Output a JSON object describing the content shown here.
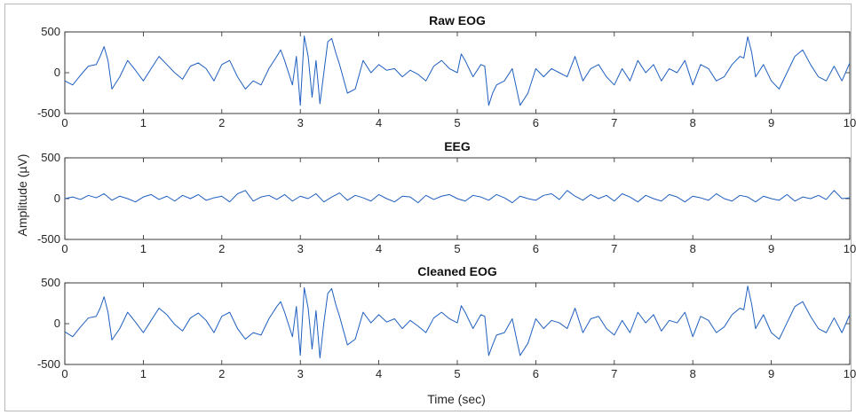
{
  "figure": {
    "ylabel": "Amplitude (µV)",
    "xlabel": "Time (sec)"
  },
  "colors": {
    "signal": "#1f5fbf",
    "axes": "#262626"
  },
  "chart_data": [
    {
      "type": "line",
      "title": "Raw EOG",
      "xlim": [
        0,
        10
      ],
      "ylim": [
        -500,
        500
      ],
      "xticks": [
        "0",
        "1",
        "2",
        "3",
        "4",
        "5",
        "6",
        "7",
        "8",
        "9",
        "10"
      ],
      "yticks": [
        "500",
        "0",
        "-500"
      ],
      "x": [
        0,
        0.1,
        0.2,
        0.3,
        0.4,
        0.45,
        0.5,
        0.55,
        0.6,
        0.7,
        0.8,
        0.9,
        1.0,
        1.1,
        1.2,
        1.3,
        1.4,
        1.5,
        1.6,
        1.7,
        1.8,
        1.9,
        2.0,
        2.1,
        2.2,
        2.3,
        2.4,
        2.5,
        2.6,
        2.7,
        2.75,
        2.8,
        2.9,
        2.95,
        3.0,
        3.05,
        3.1,
        3.15,
        3.2,
        3.25,
        3.3,
        3.35,
        3.4,
        3.45,
        3.5,
        3.6,
        3.7,
        3.8,
        3.9,
        4.0,
        4.1,
        4.2,
        4.3,
        4.4,
        4.5,
        4.6,
        4.7,
        4.8,
        4.9,
        5.0,
        5.05,
        5.1,
        5.2,
        5.3,
        5.35,
        5.4,
        5.45,
        5.5,
        5.6,
        5.7,
        5.8,
        5.9,
        6.0,
        6.1,
        6.2,
        6.3,
        6.4,
        6.5,
        6.6,
        6.7,
        6.8,
        6.9,
        7.0,
        7.1,
        7.2,
        7.3,
        7.4,
        7.5,
        7.6,
        7.7,
        7.8,
        7.9,
        8.0,
        8.1,
        8.2,
        8.3,
        8.4,
        8.5,
        8.6,
        8.65,
        8.7,
        8.75,
        8.8,
        8.9,
        9.0,
        9.1,
        9.2,
        9.3,
        9.4,
        9.5,
        9.6,
        9.7,
        9.8,
        9.9,
        10.0
      ],
      "values": [
        -100,
        -150,
        -30,
        80,
        100,
        200,
        320,
        150,
        -200,
        -50,
        150,
        30,
        -100,
        50,
        200,
        100,
        0,
        -80,
        80,
        120,
        50,
        -100,
        100,
        150,
        -50,
        -200,
        -100,
        -150,
        50,
        200,
        280,
        150,
        -150,
        200,
        -400,
        450,
        200,
        -300,
        150,
        -380,
        0,
        380,
        420,
        250,
        100,
        -250,
        -200,
        150,
        0,
        100,
        30,
        50,
        -50,
        30,
        -20,
        -100,
        80,
        150,
        50,
        0,
        230,
        150,
        -50,
        100,
        80,
        -400,
        -250,
        -150,
        -100,
        50,
        -400,
        -250,
        50,
        -50,
        50,
        0,
        -50,
        200,
        -100,
        50,
        100,
        -50,
        -150,
        50,
        -100,
        150,
        0,
        100,
        -100,
        50,
        0,
        150,
        -150,
        100,
        50,
        -100,
        -50,
        100,
        200,
        180,
        440,
        250,
        -50,
        100,
        -100,
        -200,
        0,
        200,
        280,
        100,
        -50,
        -100,
        80,
        -100,
        120
      ]
    },
    {
      "type": "line",
      "title": "EEG",
      "xlim": [
        0,
        10
      ],
      "ylim": [
        -500,
        500
      ],
      "xticks": [
        "0",
        "1",
        "2",
        "3",
        "4",
        "5",
        "6",
        "7",
        "8",
        "9",
        "10"
      ],
      "yticks": [
        "500",
        "0",
        "-500"
      ],
      "x": [
        0,
        0.1,
        0.2,
        0.3,
        0.4,
        0.5,
        0.6,
        0.7,
        0.8,
        0.9,
        1.0,
        1.1,
        1.2,
        1.3,
        1.4,
        1.5,
        1.6,
        1.7,
        1.8,
        1.9,
        2.0,
        2.1,
        2.2,
        2.3,
        2.4,
        2.5,
        2.6,
        2.7,
        2.8,
        2.9,
        3.0,
        3.1,
        3.2,
        3.3,
        3.4,
        3.5,
        3.6,
        3.7,
        3.8,
        3.9,
        4.0,
        4.1,
        4.2,
        4.3,
        4.4,
        4.5,
        4.6,
        4.7,
        4.8,
        4.9,
        5.0,
        5.1,
        5.2,
        5.3,
        5.4,
        5.5,
        5.6,
        5.7,
        5.8,
        5.9,
        6.0,
        6.1,
        6.2,
        6.3,
        6.4,
        6.5,
        6.6,
        6.7,
        6.8,
        6.9,
        7.0,
        7.1,
        7.2,
        7.3,
        7.4,
        7.5,
        7.6,
        7.7,
        7.8,
        7.9,
        8.0,
        8.1,
        8.2,
        8.3,
        8.4,
        8.5,
        8.6,
        8.7,
        8.8,
        8.9,
        9.0,
        9.1,
        9.2,
        9.3,
        9.4,
        9.5,
        9.6,
        9.7,
        9.8,
        9.9,
        10.0
      ],
      "values": [
        0,
        20,
        -10,
        40,
        10,
        60,
        -20,
        30,
        0,
        -40,
        20,
        50,
        -10,
        30,
        -30,
        40,
        0,
        50,
        -20,
        10,
        30,
        -40,
        60,
        100,
        -30,
        20,
        40,
        -10,
        50,
        -30,
        30,
        0,
        60,
        -40,
        20,
        70,
        -20,
        40,
        10,
        -30,
        50,
        0,
        -40,
        30,
        20,
        -50,
        40,
        -10,
        30,
        50,
        0,
        -30,
        40,
        20,
        -20,
        50,
        10,
        -50,
        30,
        0,
        -20,
        40,
        60,
        -10,
        100,
        30,
        -20,
        50,
        0,
        40,
        -30,
        60,
        20,
        -40,
        40,
        0,
        -30,
        50,
        20,
        -40,
        30,
        10,
        -20,
        60,
        0,
        -30,
        40,
        20,
        -40,
        30,
        0,
        -20,
        50,
        -30,
        20,
        0,
        40,
        -10,
        100,
        0,
        10
      ]
    },
    {
      "type": "line",
      "title": "Cleaned EOG",
      "xlim": [
        0,
        10
      ],
      "ylim": [
        -500,
        500
      ],
      "xticks": [
        "0",
        "1",
        "2",
        "3",
        "4",
        "5",
        "6",
        "7",
        "8",
        "9",
        "10"
      ],
      "yticks": [
        "500",
        "0",
        "-500"
      ],
      "xlabel": "Time (sec)",
      "x": [
        0,
        0.1,
        0.2,
        0.3,
        0.4,
        0.45,
        0.5,
        0.55,
        0.6,
        0.7,
        0.8,
        0.9,
        1.0,
        1.1,
        1.2,
        1.3,
        1.4,
        1.5,
        1.6,
        1.7,
        1.8,
        1.9,
        2.0,
        2.1,
        2.2,
        2.3,
        2.4,
        2.5,
        2.6,
        2.7,
        2.75,
        2.8,
        2.9,
        2.95,
        3.0,
        3.05,
        3.1,
        3.15,
        3.2,
        3.25,
        3.3,
        3.35,
        3.4,
        3.45,
        3.5,
        3.6,
        3.7,
        3.8,
        3.9,
        4.0,
        4.1,
        4.2,
        4.3,
        4.4,
        4.5,
        4.6,
        4.7,
        4.8,
        4.9,
        5.0,
        5.05,
        5.1,
        5.2,
        5.3,
        5.35,
        5.4,
        5.45,
        5.5,
        5.6,
        5.7,
        5.8,
        5.9,
        6.0,
        6.1,
        6.2,
        6.3,
        6.4,
        6.5,
        6.6,
        6.7,
        6.8,
        6.9,
        7.0,
        7.1,
        7.2,
        7.3,
        7.4,
        7.5,
        7.6,
        7.7,
        7.8,
        7.9,
        8.0,
        8.1,
        8.2,
        8.3,
        8.4,
        8.5,
        8.6,
        8.65,
        8.7,
        8.75,
        8.8,
        8.9,
        9.0,
        9.1,
        9.2,
        9.3,
        9.4,
        9.5,
        9.6,
        9.7,
        9.8,
        9.9,
        10.0
      ],
      "values": [
        -100,
        -160,
        -40,
        70,
        90,
        190,
        330,
        140,
        -200,
        -60,
        140,
        20,
        -110,
        40,
        190,
        110,
        -10,
        -90,
        70,
        130,
        40,
        -110,
        90,
        140,
        -60,
        -190,
        -110,
        -140,
        60,
        210,
        270,
        140,
        -160,
        210,
        -390,
        440,
        190,
        -310,
        160,
        -420,
        10,
        370,
        430,
        240,
        90,
        -260,
        -190,
        140,
        10,
        110,
        20,
        60,
        -60,
        40,
        -30,
        -110,
        70,
        140,
        60,
        10,
        220,
        140,
        -60,
        110,
        90,
        -390,
        -260,
        -140,
        -110,
        60,
        -390,
        -240,
        60,
        -60,
        40,
        10,
        -60,
        190,
        -110,
        60,
        90,
        -60,
        -140,
        40,
        -110,
        140,
        10,
        110,
        -90,
        40,
        10,
        140,
        -160,
        90,
        40,
        -110,
        -40,
        110,
        190,
        170,
        460,
        240,
        -60,
        110,
        -110,
        -190,
        10,
        210,
        270,
        90,
        -60,
        -110,
        70,
        -110,
        110
      ]
    }
  ]
}
